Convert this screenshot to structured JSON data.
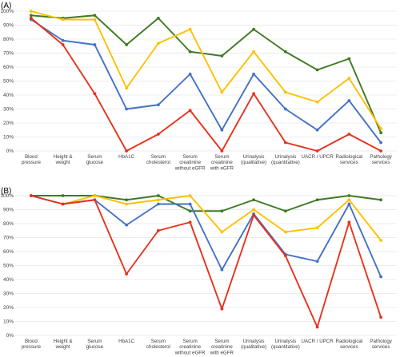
{
  "chart_data": [
    {
      "type": "line",
      "panel_label": "(A)",
      "categories": [
        [
          "Blood",
          "pressure"
        ],
        [
          "Height &",
          "weight"
        ],
        [
          "Serum",
          "glucose"
        ],
        [
          "HbA1C"
        ],
        [
          "Serum",
          "cholesterol"
        ],
        [
          "Serum",
          "creatinine",
          "without eGFR"
        ],
        [
          "Serum",
          "creatinine",
          "with eGFR"
        ],
        [
          "Urinalysis",
          "(qualitative)"
        ],
        [
          "Urinalysis",
          "(quantitative)"
        ],
        [
          "UACR / UPCR"
        ],
        [
          "Radiological",
          "services"
        ],
        [
          "Pathology",
          "services"
        ]
      ],
      "ylim": [
        0,
        100
      ],
      "yticks": [
        "0%",
        "10%",
        "20%",
        "30%",
        "40%",
        "50%",
        "60%",
        "70%",
        "80%",
        "90%",
        "100%"
      ],
      "grid": true,
      "series": [
        {
          "color": "#3f7a22",
          "values": [
            97,
            95,
            97,
            76,
            95,
            71,
            68,
            87,
            71,
            58,
            66,
            13
          ]
        },
        {
          "color": "#ffc000",
          "values": [
            100,
            94,
            94,
            45,
            77,
            87,
            42,
            71,
            42,
            35,
            52,
            16
          ]
        },
        {
          "color": "#4472c4",
          "values": [
            94,
            79,
            76,
            30,
            33,
            55,
            15,
            55,
            30,
            15,
            36,
            6
          ]
        },
        {
          "color": "#e8321e",
          "values": [
            95,
            76,
            41,
            0,
            12,
            29,
            0,
            41,
            6,
            0,
            12,
            0
          ]
        }
      ]
    },
    {
      "type": "line",
      "panel_label": "(B)",
      "categories": [
        [
          "Blood",
          "pressure"
        ],
        [
          "Height &",
          "weight"
        ],
        [
          "Serum",
          "glucose"
        ],
        [
          "HbA1C"
        ],
        [
          "Serum",
          "cholesterol"
        ],
        [
          "Serum",
          "creatinine",
          "without eGFR"
        ],
        [
          "Serum",
          "creatinine",
          "with eGFR"
        ],
        [
          "Urinalysis",
          "(qualitative)"
        ],
        [
          "Urinalysis",
          "(quantitative)"
        ],
        [
          "UACR / UPCR"
        ],
        [
          "Radiological",
          "services"
        ],
        [
          "Pathology",
          "services"
        ]
      ],
      "ylim": [
        0,
        100
      ],
      "yticks": [
        "0%",
        "10%",
        "20%",
        "30%",
        "40%",
        "50%",
        "60%",
        "70%",
        "80%",
        "90%",
        "100%"
      ],
      "grid": true,
      "series": [
        {
          "color": "#3f7a22",
          "values": [
            100,
            100,
            100,
            97,
            100,
            89,
            89,
            97,
            89,
            97,
            100,
            97
          ]
        },
        {
          "color": "#ffc000",
          "values": [
            100,
            94,
            100,
            94,
            97,
            100,
            74,
            90,
            74,
            77,
            97,
            68
          ]
        },
        {
          "color": "#4472c4",
          "values": [
            100,
            94,
            97,
            79,
            94,
            94,
            47,
            87,
            58,
            53,
            94,
            42
          ]
        },
        {
          "color": "#e8321e",
          "values": [
            100,
            94,
            97,
            44,
            75,
            81,
            19,
            86,
            57,
            6,
            81,
            13
          ]
        }
      ]
    }
  ]
}
